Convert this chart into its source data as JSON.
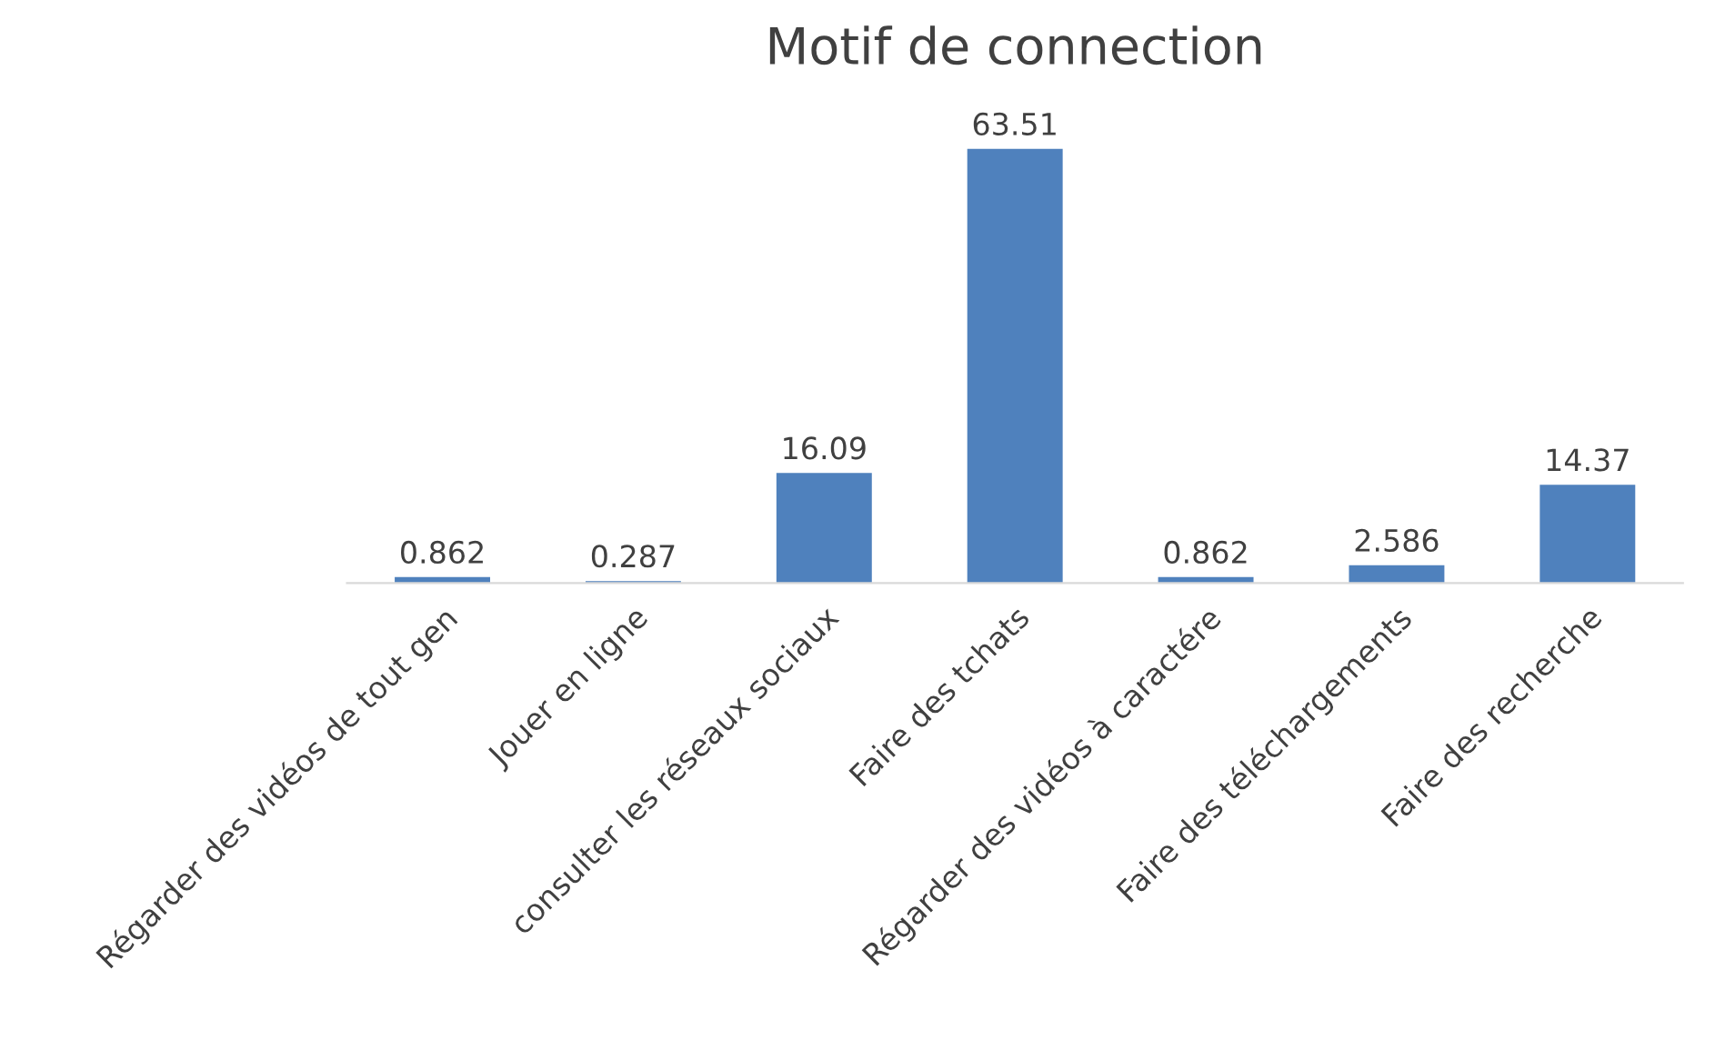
{
  "chart_data": {
    "type": "bar",
    "title": "Motif de connection",
    "categories": [
      "Régarder des vidéos de tout gen",
      "Jouer en ligne",
      "consulter les réseaux sociaux",
      "Faire des tchats",
      "Régarder des vidéos à caractére",
      "Faire des téléchargements",
      "Faire des recherche"
    ],
    "values": [
      0.862,
      0.287,
      16.09,
      63.51,
      0.862,
      2.586,
      14.37
    ],
    "color": "#4f81bd",
    "data_labels": true,
    "grid": false,
    "legend": false
  }
}
